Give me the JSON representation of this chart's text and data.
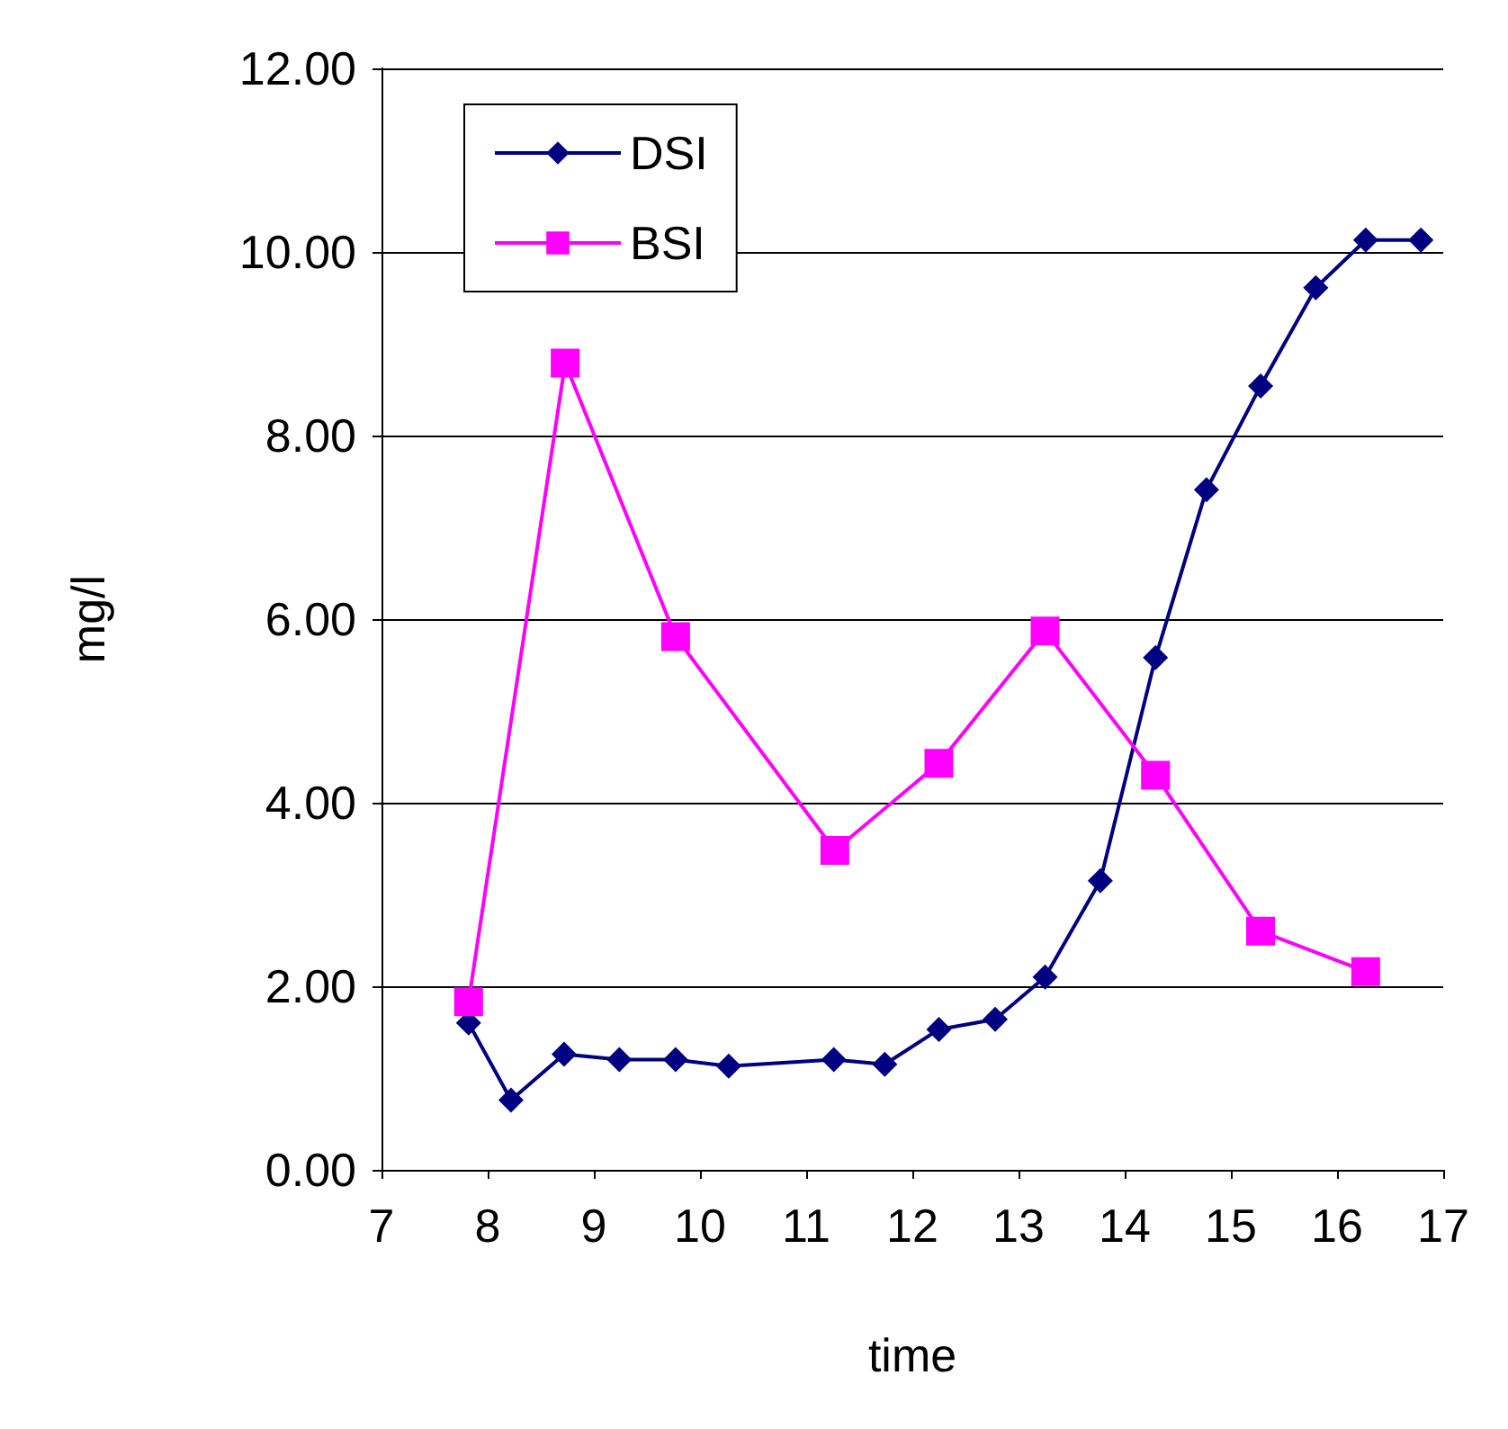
{
  "chart_data": {
    "type": "line",
    "xlabel": "time",
    "ylabel": "mg/l",
    "xlim": [
      7,
      17
    ],
    "xticks": [
      7,
      8,
      9,
      10,
      11,
      12,
      13,
      14,
      15,
      16,
      17
    ],
    "ylim": [
      0,
      12
    ],
    "yticks": [
      {
        "value": 0,
        "label": "0.00"
      },
      {
        "value": 2,
        "label": "2.00"
      },
      {
        "value": 4,
        "label": "4.00"
      },
      {
        "value": 6,
        "label": "6.00"
      },
      {
        "value": 8,
        "label": "8.00"
      },
      {
        "value": 10,
        "label": "10.00"
      },
      {
        "value": 12,
        "label": "12.00"
      }
    ],
    "grid": "y",
    "legend": "top left",
    "series": [
      {
        "name": "DSI",
        "color": "#000080",
        "marker": "diamond",
        "x": [
          7.82,
          8.22,
          8.72,
          9.24,
          9.77,
          10.27,
          11.26,
          11.74,
          12.25,
          12.78,
          13.25,
          13.77,
          14.29,
          14.77,
          15.28,
          15.8,
          16.27,
          16.79
        ],
        "values": [
          1.6,
          0.76,
          1.26,
          1.2,
          1.2,
          1.13,
          1.2,
          1.15,
          1.53,
          1.64,
          2.1,
          3.15,
          5.58,
          7.41,
          8.54,
          9.61,
          10.13,
          10.13
        ]
      },
      {
        "name": "BSI",
        "color": "#ff00ff",
        "marker": "square",
        "x": [
          7.82,
          8.73,
          9.77,
          11.27,
          12.25,
          13.25,
          14.29,
          15.28,
          16.27
        ],
        "values": [
          1.83,
          8.79,
          5.81,
          3.48,
          4.43,
          5.87,
          4.3,
          2.6,
          2.16
        ]
      }
    ]
  }
}
